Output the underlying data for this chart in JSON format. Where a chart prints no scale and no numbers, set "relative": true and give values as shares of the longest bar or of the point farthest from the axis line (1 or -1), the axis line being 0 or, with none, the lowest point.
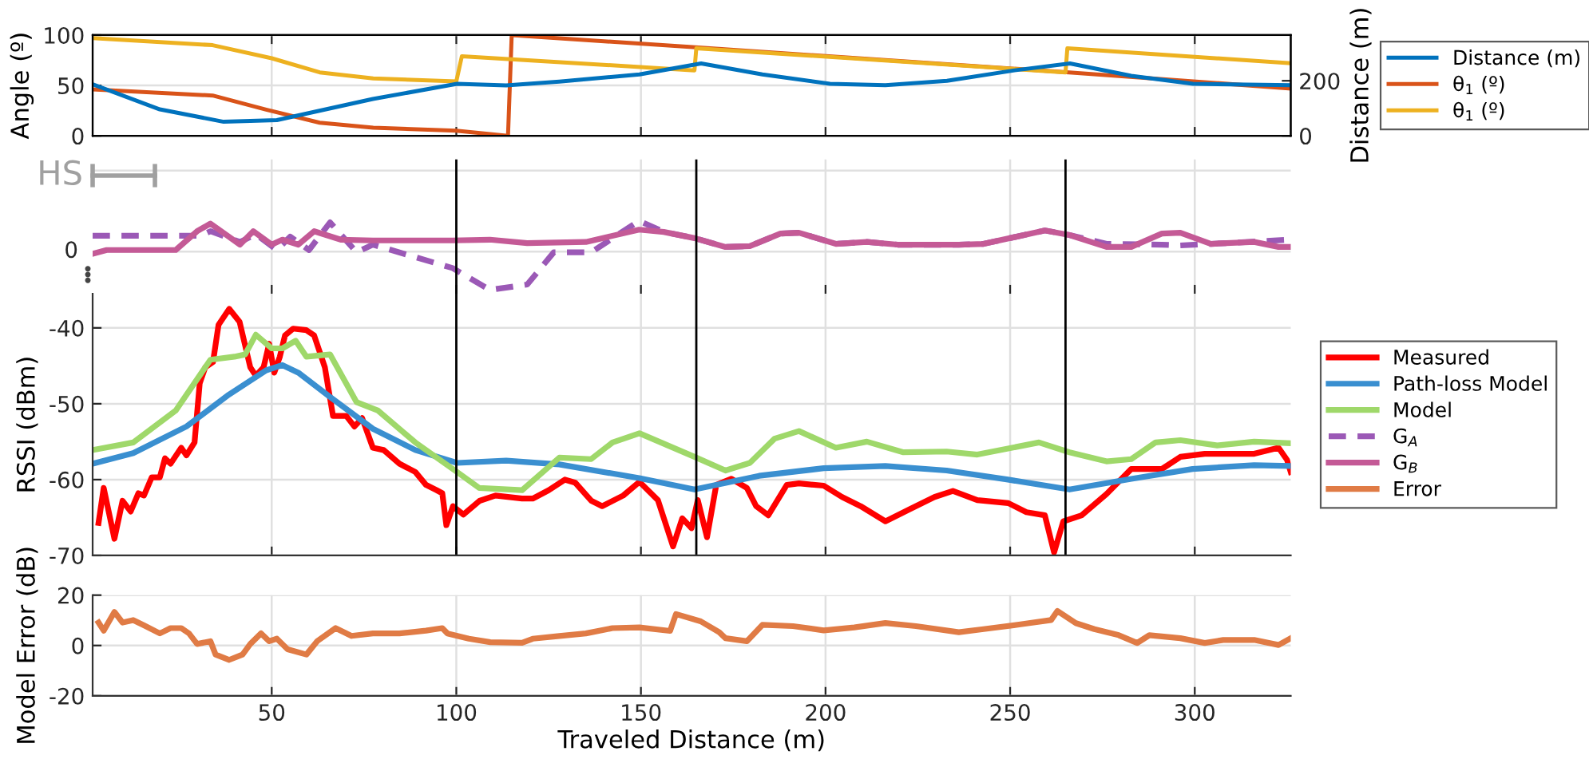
{
  "chart_data": [
    {
      "type": "line",
      "ylabel": "Angle (º)",
      "y2label": "Distance (m)",
      "xlim": [
        1.5,
        326
      ],
      "xticks": [
        50,
        100,
        150,
        200,
        250,
        300
      ],
      "ylim": [
        0,
        100
      ],
      "yticks": [
        0,
        50,
        100
      ],
      "y2lim": [
        0,
        366
      ],
      "y2ticks": [
        0,
        200
      ],
      "tick_labels": "y",
      "grid": true,
      "legend": "right",
      "line_style": "solid",
      "series": [
        {
          "name": "Distance (m)",
          "color": "#0072bd",
          "axis": "y2",
          "x": [
            1.5,
            19.7,
            37,
            51.4,
            77.4,
            100.2,
            113.5,
            127.9,
            149.6,
            166.3,
            182.9,
            201.2,
            216.2,
            232.9,
            251.2,
            266.2,
            282.8,
            299.5,
            326
          ],
          "values": [
            187,
            96,
            51,
            57,
            134,
            189,
            183,
            197,
            223,
            263,
            223,
            189,
            184,
            200,
            238,
            263,
            218,
            189,
            184
          ]
        },
        {
          "name": "θ$_{1}$ (º)",
          "color": "#d95319",
          "x": [
            1.5,
            34,
            48.5,
            63,
            77.5,
            100,
            114,
            115,
            164,
            266,
            326
          ],
          "values": [
            46,
            40,
            26,
            13,
            8,
            5,
            0,
            100,
            88,
            63,
            47
          ]
        },
        {
          "name": "θ$_{1}$ (º)",
          "color": "#edb120",
          "x": [
            1.5,
            34,
            50,
            63,
            77.5,
            100,
            101.5,
            164.5,
            165,
            265,
            265.5,
            326
          ],
          "values": [
            97,
            90,
            77,
            63,
            57,
            54,
            79,
            65,
            87,
            63,
            87,
            72
          ]
        }
      ]
    },
    {
      "type": "line",
      "relative": true,
      "xlim": [
        1.5,
        326
      ],
      "xticks": [
        50,
        100,
        150,
        200,
        250,
        300
      ],
      "tick_labels": false,
      "grid": true,
      "legend": "right",
      "annotations": [
        "HS",
        "0"
      ],
      "ref_lines": [
        {
          "axis": "x",
          "value": 100,
          "color": "#000000"
        },
        {
          "axis": "x",
          "value": 165,
          "color": "#000000"
        },
        {
          "axis": "x",
          "value": 265,
          "color": "#000000"
        }
      ],
      "series": [
        {
          "name": "G$_{A}$",
          "color": "#9b59b6",
          "line_style": "dashed",
          "x": [
            1.5,
            30.6,
            33.4,
            41.4,
            45.7,
            51.4,
            55,
            60.1,
            65.8,
            73,
            77.4,
            99,
            109.1,
            119.2,
            126.4,
            136.5,
            149.5,
            156.2,
            164.5,
            172.9,
            179.5,
            187.8,
            192.8,
            202.8,
            211.2,
            219.5,
            236.1,
            242.8,
            259.4,
            266.1,
            276.1,
            291.1,
            296.1,
            304.4,
            326
          ],
          "values": [
            0.41,
            0.41,
            0.53,
            0.25,
            0.45,
            0.04,
            0.39,
            0.04,
            0.76,
            -0.02,
            0.18,
            -0.43,
            -1,
            -0.86,
            -0.02,
            -0.02,
            0.8,
            0.51,
            0.35,
            0.12,
            0.14,
            0.47,
            0.49,
            0.2,
            0.25,
            0.18,
            0.18,
            0.2,
            0.55,
            0.43,
            0.2,
            0.18,
            0.16,
            0.2,
            0.31
          ]
        },
        {
          "name": "G$_{B}$",
          "color": "#c45a96",
          "line_style": "solid",
          "x": [
            1.5,
            5.3,
            24,
            29.8,
            33.4,
            41.4,
            45,
            50,
            52.9,
            57.2,
            61.5,
            68.7,
            77.4,
            99,
            109.1,
            119.2,
            135.1,
            149.5,
            156.2,
            164.5,
            172.9,
            179.5,
            187.8,
            192.8,
            202.8,
            211.2,
            219.5,
            236.1,
            242.8,
            259.4,
            266.1,
            276.1,
            282.8,
            291.1,
            296.1,
            304.4,
            316.1,
            322.7,
            326
          ],
          "values": [
            -0.06,
            0.04,
            0.04,
            0.53,
            0.73,
            0.18,
            0.53,
            0.18,
            0.31,
            0.18,
            0.53,
            0.31,
            0.29,
            0.29,
            0.31,
            0.22,
            0.25,
            0.57,
            0.51,
            0.35,
            0.12,
            0.14,
            0.47,
            0.49,
            0.2,
            0.25,
            0.18,
            0.18,
            0.2,
            0.55,
            0.43,
            0.12,
            0.12,
            0.47,
            0.49,
            0.2,
            0.25,
            0.12,
            0.12
          ]
        }
      ]
    },
    {
      "type": "line",
      "ylabel": "RSSI (dBm)",
      "xlim": [
        1.5,
        326
      ],
      "xticks": [
        50,
        100,
        150,
        200,
        250,
        300
      ],
      "ylim": [
        -70,
        -35.5
      ],
      "yticks": [
        -70,
        -60,
        -50,
        -40
      ],
      "tick_labels": "y",
      "grid": true,
      "legend": "right",
      "line_style": "solid",
      "ref_lines": [
        {
          "axis": "x",
          "value": 100,
          "color": "#000000"
        },
        {
          "axis": "x",
          "value": 165,
          "color": "#000000"
        },
        {
          "axis": "x",
          "value": 265,
          "color": "#000000"
        }
      ],
      "series": [
        {
          "name": "Measured",
          "color": "#ff0000",
          "x": [
            3.1,
            4.5,
            7.4,
            9.6,
            11.8,
            13.9,
            15.4,
            17.5,
            19.7,
            21.1,
            22.6,
            25.5,
            26.9,
            29.1,
            30.5,
            32.0,
            34.1,
            35.6,
            38.5,
            41.3,
            44.2,
            45.7,
            47.8,
            49.3,
            50.7,
            52.2,
            53.6,
            55.8,
            59.4,
            61.5,
            64.4,
            66.6,
            70.2,
            72.4,
            74.5,
            77.4,
            80.3,
            84.6,
            88.9,
            91.8,
            94.7,
            96.2,
            97.3,
            99.1,
            101.9,
            106.3,
            110.6,
            117.8,
            120.7,
            125.0,
            129.4,
            132.2,
            136.6,
            139.5,
            145.2,
            149.6,
            154.6,
            158.7,
            161.2,
            163.7,
            165.4,
            167.9,
            170.4,
            174.5,
            178.7,
            181.2,
            184.5,
            189.5,
            192.8,
            199.5,
            204.5,
            209.5,
            216.2,
            222.8,
            229.5,
            234.5,
            241.1,
            249.5,
            254.4,
            259.4,
            261.9,
            264.4,
            269.4,
            276.1,
            282.8,
            291.1,
            296.1,
            302.7,
            309.4,
            316.1,
            322.7,
            325,
            326
          ],
          "values": [
            -65.7,
            -61.1,
            -67.8,
            -62.8,
            -64.2,
            -61.8,
            -62.1,
            -59.7,
            -59.7,
            -57.2,
            -57.9,
            -55.8,
            -56.8,
            -55.1,
            -47.3,
            -45.2,
            -44.5,
            -39.6,
            -37.5,
            -39.2,
            -45.2,
            -46.3,
            -45.2,
            -42.1,
            -45.9,
            -43.8,
            -41.0,
            -40.1,
            -40.3,
            -41.0,
            -45.2,
            -51.6,
            -51.6,
            -53.0,
            -51.9,
            -55.8,
            -56.1,
            -57.9,
            -59.0,
            -60.7,
            -61.4,
            -61.8,
            -66.0,
            -63.5,
            -64.6,
            -62.8,
            -62.1,
            -62.5,
            -62.5,
            -61.4,
            -60.0,
            -60.4,
            -62.8,
            -63.5,
            -62.1,
            -60.3,
            -62.7,
            -68.8,
            -65.1,
            -66.4,
            -62.7,
            -67.6,
            -60.7,
            -59.9,
            -61.1,
            -63.5,
            -64.7,
            -60.7,
            -60.5,
            -60.8,
            -62.3,
            -63.5,
            -65.5,
            -63.9,
            -62.3,
            -61.5,
            -62.7,
            -63.1,
            -64.3,
            -64.7,
            -69.6,
            -65.5,
            -64.7,
            -61.9,
            -58.6,
            -58.6,
            -57.0,
            -56.6,
            -56.6,
            -56.6,
            -55.8,
            -57.4,
            -59.0
          ]
        },
        {
          "name": "Path-loss Model",
          "color": "#3a8fd0",
          "x": [
            1.5,
            12.5,
            26.9,
            38.4,
            48.5,
            52.9,
            57.2,
            65.8,
            77.4,
            88.9,
            100.2,
            113.5,
            127.9,
            149.5,
            164.5,
            182,
            199.5,
            216.2,
            232.8,
            249.4,
            266.1,
            282.8,
            299.4,
            316.1,
            326
          ],
          "values": [
            -57.9,
            -56.5,
            -53,
            -48.8,
            -45.6,
            -44.9,
            -45.9,
            -49.1,
            -53.3,
            -56.1,
            -57.8,
            -57.5,
            -58,
            -59.8,
            -61.3,
            -59.5,
            -58.5,
            -58.2,
            -58.8,
            -60,
            -61.3,
            -59.9,
            -58.6,
            -58.1,
            -58.2
          ]
        },
        {
          "name": "Model",
          "color": "#9fd86a",
          "x": [
            1.5,
            12.5,
            24.0,
            33.4,
            39.9,
            42.8,
            45.7,
            50.0,
            52.9,
            56.5,
            59.4,
            65.8,
            73.0,
            78.8,
            88.9,
            100.2,
            106.2,
            117.8,
            127.9,
            136.5,
            142.3,
            149.6,
            164.5,
            172.9,
            179.5,
            186.2,
            192.8,
            202.8,
            211.2,
            221.1,
            232.8,
            241.1,
            257.8,
            266.1,
            276.1,
            282.8,
            289.4,
            296.1,
            306.1,
            316.1,
            326
          ],
          "values": [
            -56.1,
            -55.1,
            -50.9,
            -44.2,
            -43.8,
            -43.5,
            -40.9,
            -42.7,
            -42.7,
            -41.7,
            -43.8,
            -43.5,
            -49.8,
            -50.9,
            -55.1,
            -59,
            -61.1,
            -61.4,
            -57.1,
            -57.3,
            -55.1,
            -53.9,
            -57,
            -58.8,
            -57.8,
            -54.6,
            -53.6,
            -55.8,
            -55,
            -56.4,
            -56.3,
            -56.7,
            -55.1,
            -56.4,
            -57.6,
            -57.3,
            -55.1,
            -54.8,
            -55.5,
            -55,
            -55.2
          ]
        }
      ]
    },
    {
      "type": "line",
      "ylabel": "Model Error (dB)",
      "xlabel": "Traveled Distance (m)",
      "xlim": [
        1.5,
        326
      ],
      "xticks": [
        50,
        100,
        150,
        200,
        250,
        300
      ],
      "ylim": [
        -20,
        20
      ],
      "yticks": [
        -20,
        0,
        20
      ],
      "grid": true,
      "legend": "right",
      "line_style": "solid",
      "series": [
        {
          "name": "Error",
          "color": "#e07b45",
          "x": [
            3.1,
            4.5,
            7.4,
            9.6,
            12.5,
            15.4,
            19.7,
            22.6,
            25.5,
            27.6,
            29.8,
            33.4,
            34.8,
            38.5,
            42.1,
            44.2,
            47.1,
            49.3,
            51.4,
            54.3,
            59.4,
            62.3,
            67.3,
            71.6,
            77.4,
            84.6,
            91.8,
            96.2,
            97.6,
            103.4,
            109.2,
            117.8,
            120.7,
            127.9,
            135.1,
            142.3,
            149.6,
            157.9,
            159.5,
            166.2,
            171.2,
            172.9,
            178.7,
            182.9,
            191.2,
            199.5,
            207.8,
            216.2,
            224.5,
            236.1,
            242.8,
            252.8,
            261.1,
            262.8,
            267.8,
            272.8,
            279.4,
            284.4,
            287.7,
            296.1,
            302.7,
            307.7,
            316.1,
            322.7,
            326
          ],
          "values": [
            9.1,
            5.9,
            13.3,
            9.1,
            10.1,
            8.0,
            4.8,
            6.9,
            6.9,
            4.8,
            0.6,
            1.7,
            -3.6,
            -5.7,
            -3.6,
            0.6,
            4.8,
            1.7,
            2.7,
            -1.5,
            -3.6,
            1.7,
            6.9,
            3.8,
            4.8,
            4.8,
            5.9,
            6.9,
            4.8,
            2.7,
            1.3,
            1.1,
            2.7,
            3.8,
            4.8,
            6.9,
            7.2,
            5.8,
            12.5,
            9.6,
            5.3,
            2.9,
            1.7,
            8.2,
            7.7,
            6.0,
            7.2,
            8.9,
            7.7,
            5.3,
            6.5,
            8.4,
            10.1,
            13.7,
            8.9,
            6.5,
            4.1,
            1.0,
            4.1,
            2.9,
            1.0,
            2.2,
            2.2,
            0.2,
            2.9
          ]
        }
      ]
    }
  ]
}
